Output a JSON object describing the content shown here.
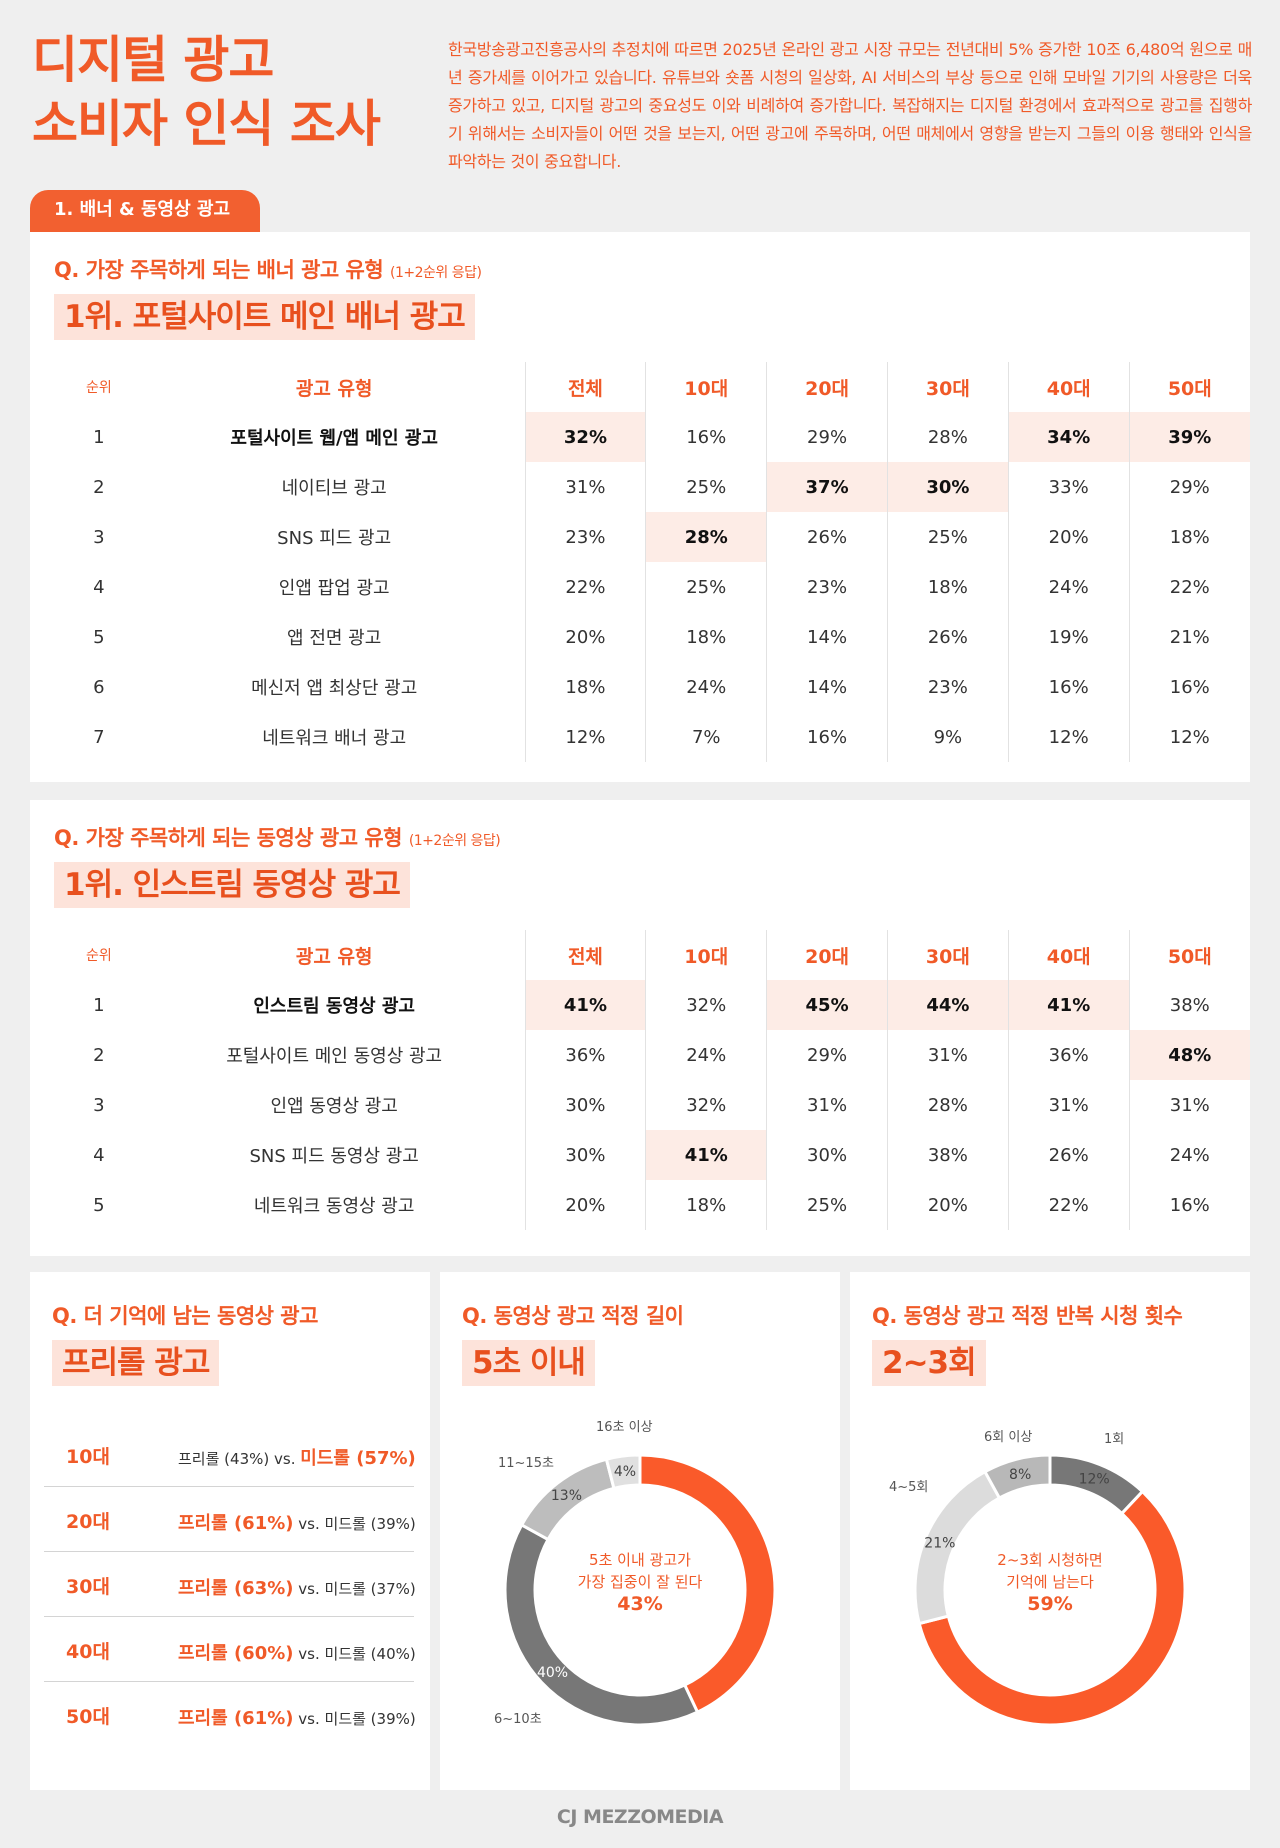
{
  "header": {
    "title_line1": "디지털 광고",
    "title_line2": "소비자 인식 조사",
    "intro": "한국방송광고진흥공사의 추정치에 따르면 2025년 온라인 광고 시장 규모는 전년대비 5% 증가한 10조 6,480억 원으로 매년 증가세를 이어가고 있습니다. 유튜브와 숏폼 시청의 일상화, AI 서비스의 부상 등으로 인해 모바일 기기의 사용량은 더욱 증가하고 있고, 디지털 광고의 중요성도 이와 비례하여 증가합니다. 복잡해지는 디지털 환경에서 효과적으로 광고를 집행하기 위해서는 소비자들이 어떤 것을 보는지, 어떤 광고에 주목하며, 어떤 매체에서 영향을 받는지 그들의 이용 행태와 인식을 파악하는 것이 중요합니다."
  },
  "section_tab": "1. 배너 & 동영상 광고",
  "banner": {
    "question": "Q. 가장 주목하게 되는 배너 광고 유형",
    "note": "(1+2순위 응답)",
    "answer": "1위. 포털사이트 메인 배너 광고",
    "headers": [
      "순위",
      "광고 유형",
      "전체",
      "10대",
      "20대",
      "30대",
      "40대",
      "50대"
    ],
    "rows": [
      {
        "rank": "1",
        "type": "포털사이트 웹/앱 메인 광고",
        "values": [
          "32%",
          "16%",
          "29%",
          "28%",
          "34%",
          "39%"
        ]
      },
      {
        "rank": "2",
        "type": "네이티브 광고",
        "values": [
          "31%",
          "25%",
          "37%",
          "30%",
          "33%",
          "29%"
        ]
      },
      {
        "rank": "3",
        "type": "SNS 피드 광고",
        "values": [
          "23%",
          "28%",
          "26%",
          "25%",
          "20%",
          "18%"
        ]
      },
      {
        "rank": "4",
        "type": "인앱 팝업 광고",
        "values": [
          "22%",
          "25%",
          "23%",
          "18%",
          "24%",
          "22%"
        ]
      },
      {
        "rank": "5",
        "type": "앱 전면 광고",
        "values": [
          "20%",
          "18%",
          "14%",
          "26%",
          "19%",
          "21%"
        ]
      },
      {
        "rank": "6",
        "type": "메신저 앱 최상단 광고",
        "values": [
          "18%",
          "24%",
          "14%",
          "23%",
          "16%",
          "16%"
        ]
      },
      {
        "rank": "7",
        "type": "네트워크 배너 광고",
        "values": [
          "12%",
          "7%",
          "16%",
          "9%",
          "12%",
          "12%"
        ]
      }
    ]
  },
  "video": {
    "question": "Q. 가장 주목하게 되는 동영상 광고 유형",
    "note": "(1+2순위 응답)",
    "answer": "1위. 인스트림 동영상 광고",
    "headers": [
      "순위",
      "광고 유형",
      "전체",
      "10대",
      "20대",
      "30대",
      "40대",
      "50대"
    ],
    "rows": [
      {
        "rank": "1",
        "type": "인스트림 동영상 광고",
        "values": [
          "41%",
          "32%",
          "45%",
          "44%",
          "41%",
          "38%"
        ]
      },
      {
        "rank": "2",
        "type": "포털사이트 메인 동영상 광고",
        "values": [
          "36%",
          "24%",
          "29%",
          "31%",
          "36%",
          "48%"
        ]
      },
      {
        "rank": "3",
        "type": "인앱 동영상 광고",
        "values": [
          "30%",
          "32%",
          "31%",
          "28%",
          "31%",
          "31%"
        ]
      },
      {
        "rank": "4",
        "type": "SNS 피드 동영상 광고",
        "values": [
          "30%",
          "41%",
          "30%",
          "38%",
          "26%",
          "24%"
        ]
      },
      {
        "rank": "5",
        "type": "네트워크 동영상 광고",
        "values": [
          "20%",
          "18%",
          "25%",
          "20%",
          "22%",
          "16%"
        ]
      }
    ]
  },
  "memorable": {
    "question": "Q. 더 기억에 남는 동영상 광고",
    "answer": "프리롤 광고",
    "vs": "vs.",
    "rows": [
      {
        "age": "10대",
        "pre": "프리롤 (43%)",
        "mid": "미드롤 (57%)",
        "winner": "mid"
      },
      {
        "age": "20대",
        "pre": "프리롤 (61%)",
        "mid": "미드롤 (39%)",
        "winner": "pre"
      },
      {
        "age": "30대",
        "pre": "프리롤 (63%)",
        "mid": "미드롤 (37%)",
        "winner": "pre"
      },
      {
        "age": "40대",
        "pre": "프리롤 (60%)",
        "mid": "미드롤 (40%)",
        "winner": "pre"
      },
      {
        "age": "50대",
        "pre": "프리롤 (61%)",
        "mid": "미드롤 (39%)",
        "winner": "pre"
      }
    ]
  },
  "length": {
    "question": "Q. 동영상 광고 적정 길이",
    "answer": "5초 이내",
    "center_line1": "5초 이내 광고가",
    "center_line2": "가장 집중이 잘 된다",
    "center_value": "43%",
    "chart_data": {
      "type": "pie",
      "donut": true,
      "categories": [
        "5초 이내",
        "6~10초",
        "11~15초",
        "16초 이상"
      ],
      "values": [
        43,
        40,
        13,
        4
      ],
      "value_labels": [
        "",
        "40%",
        "13%",
        "4%"
      ],
      "colors": [
        "#fa5a2a",
        "#777777",
        "#bdbdbd",
        "#e0e0e0"
      ]
    }
  },
  "repeat": {
    "question": "Q. 동영상 광고 적정 반복 시청 횟수",
    "answer": "2~3회",
    "center_line1": "2~3회 시청하면",
    "center_line2": "기억에 남는다",
    "center_value": "59%",
    "chart_data": {
      "type": "pie",
      "donut": true,
      "categories": [
        "1회",
        "2~3회",
        "4~5회",
        "6회 이상"
      ],
      "values": [
        12,
        59,
        21,
        8
      ],
      "value_labels": [
        "12%",
        "",
        "21%",
        "8%"
      ],
      "colors": [
        "#777777",
        "#fa5a2a",
        "#dcdcdc",
        "#b8b8b8"
      ]
    }
  },
  "footer": {
    "logo": "CJ MEZZOMEDIA"
  },
  "colors": {
    "accent": "#f05a28",
    "highlight": "#fdece6"
  }
}
